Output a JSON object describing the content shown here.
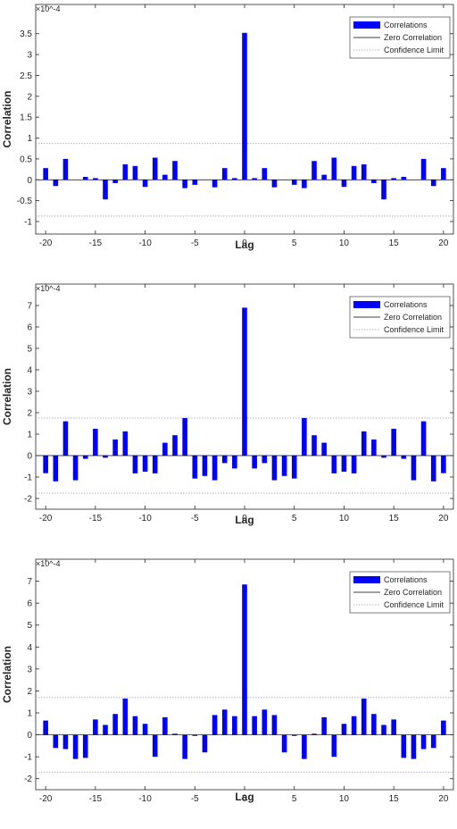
{
  "chart_data": [
    {
      "type": "bar",
      "xlabel": "Lag",
      "ylabel": "Correlation",
      "y_exponent": "×10^-4",
      "xlim": [
        -21,
        21
      ],
      "ylim": [
        -1.3,
        4.2
      ],
      "xticks": [
        -20,
        -15,
        -10,
        -5,
        0,
        5,
        10,
        15,
        20
      ],
      "yticks": [
        -1,
        -0.5,
        0,
        0.5,
        1,
        1.5,
        2,
        2.5,
        3,
        3.5
      ],
      "x": [
        -20,
        -19,
        -18,
        -17,
        -16,
        -15,
        -14,
        -13,
        -12,
        -11,
        -10,
        -9,
        -8,
        -7,
        -6,
        -5,
        -4,
        -3,
        -2,
        -1,
        0,
        1,
        2,
        3,
        4,
        5,
        6,
        7,
        8,
        9,
        10,
        11,
        12,
        13,
        14,
        15,
        16,
        17,
        18,
        19,
        20
      ],
      "values": [
        0.28,
        -0.15,
        0.5,
        0,
        0.07,
        0.04,
        -0.47,
        -0.08,
        0.37,
        0.33,
        -0.17,
        0.53,
        0.12,
        0.45,
        -0.2,
        -0.12,
        0,
        -0.18,
        0.28,
        0.04,
        3.52,
        0.04,
        0.28,
        -0.18,
        0,
        -0.12,
        -0.2,
        0.45,
        0.12,
        0.53,
        -0.17,
        0.33,
        0.37,
        -0.08,
        -0.47,
        0.04,
        0.07,
        0,
        0.5,
        -0.15,
        0.28
      ],
      "confidence_limit": 0.87,
      "grid": false,
      "legend": {
        "placement": "top-right",
        "entries": [
          "Correlations",
          "Zero Correlation",
          "Confidence Limit"
        ]
      }
    },
    {
      "type": "bar",
      "xlabel": "Lag",
      "ylabel": "Correlation",
      "y_exponent": "×10^-4",
      "xlim": [
        -21,
        21
      ],
      "ylim": [
        -2.5,
        8
      ],
      "xticks": [
        -20,
        -15,
        -10,
        -5,
        0,
        5,
        10,
        15,
        20
      ],
      "yticks": [
        -2,
        -1,
        0,
        1,
        2,
        3,
        4,
        5,
        6,
        7
      ],
      "x": [
        -20,
        -19,
        -18,
        -17,
        -16,
        -15,
        -14,
        -13,
        -12,
        -11,
        -10,
        -9,
        -8,
        -7,
        -6,
        -5,
        -4,
        -3,
        -2,
        -1,
        0,
        1,
        2,
        3,
        4,
        5,
        6,
        7,
        8,
        9,
        10,
        11,
        12,
        13,
        14,
        15,
        16,
        17,
        18,
        19,
        20
      ],
      "values": [
        -0.82,
        -1.2,
        1.6,
        -1.15,
        -0.15,
        1.25,
        -0.1,
        0.75,
        1.13,
        -0.83,
        -0.75,
        -0.83,
        0.6,
        0.95,
        1.75,
        -1.07,
        -0.95,
        -1.15,
        -0.35,
        -0.6,
        6.9,
        -0.6,
        -0.35,
        -1.15,
        -0.95,
        -1.07,
        1.75,
        0.95,
        0.6,
        -0.83,
        -0.75,
        -0.83,
        1.13,
        0.75,
        -0.1,
        1.25,
        -0.15,
        -1.15,
        1.6,
        -1.2,
        -0.82
      ],
      "confidence_limit": 1.75,
      "grid": false,
      "legend": {
        "placement": "top-right",
        "entries": [
          "Correlations",
          "Zero Correlation",
          "Confidence Limit"
        ]
      }
    },
    {
      "type": "bar",
      "xlabel": "Lag",
      "ylabel": "Correlation",
      "y_exponent": "×10^-4",
      "xlim": [
        -21,
        21
      ],
      "ylim": [
        -2.5,
        8
      ],
      "xticks": [
        -20,
        -15,
        -10,
        -5,
        0,
        5,
        10,
        15,
        20
      ],
      "yticks": [
        -2,
        -1,
        0,
        1,
        2,
        3,
        4,
        5,
        6,
        7
      ],
      "x": [
        -20,
        -19,
        -18,
        -17,
        -16,
        -15,
        -14,
        -13,
        -12,
        -11,
        -10,
        -9,
        -8,
        -7,
        -6,
        -5,
        -4,
        -3,
        -2,
        -1,
        0,
        1,
        2,
        3,
        4,
        5,
        6,
        7,
        8,
        9,
        10,
        11,
        12,
        13,
        14,
        15,
        16,
        17,
        18,
        19,
        20
      ],
      "values": [
        0.65,
        -0.6,
        -0.65,
        -1.1,
        -1.05,
        0.7,
        0.45,
        0.95,
        1.65,
        0.85,
        0.5,
        -1.0,
        0.8,
        0.05,
        -1.1,
        -0.05,
        -0.8,
        0.9,
        1.15,
        0.85,
        6.85,
        0.85,
        1.15,
        0.9,
        -0.8,
        -0.05,
        -1.1,
        0.05,
        0.8,
        -1.0,
        0.5,
        0.85,
        1.65,
        0.95,
        0.45,
        0.7,
        -1.05,
        -1.1,
        -0.65,
        -0.6,
        0.65
      ],
      "confidence_limit": 1.7,
      "grid": false,
      "legend": {
        "placement": "top-right",
        "entries": [
          "Correlations",
          "Zero Correlation",
          "Confidence Limit"
        ]
      }
    }
  ],
  "colors": {
    "bar": "#0000ff",
    "zero_line": "#000000",
    "confidence_line": "#b4b4b4",
    "axis": "#262626"
  }
}
